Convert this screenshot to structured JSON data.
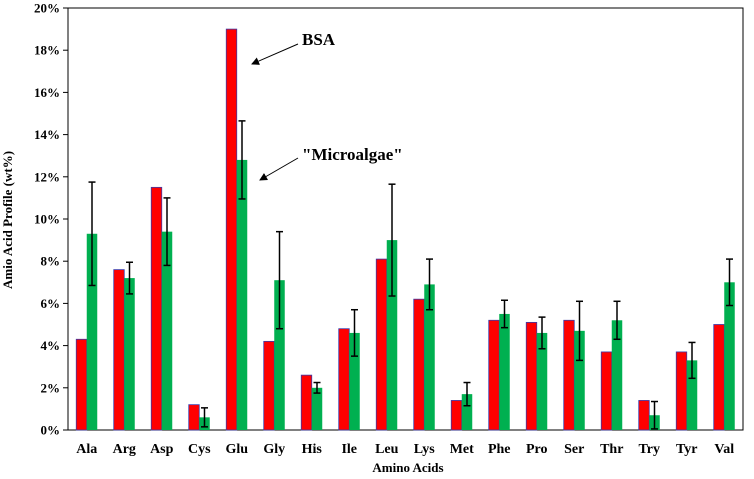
{
  "chart_data": {
    "type": "bar",
    "xlabel": "Amino Acids",
    "ylabel": "Amio Acid Profile (wt%)",
    "ylim": [
      0,
      20
    ],
    "yticks": [
      0,
      2,
      4,
      6,
      8,
      10,
      12,
      14,
      16,
      18,
      20
    ],
    "ytick_suffix": "%",
    "grid": false,
    "legend": "none",
    "categories": [
      "Ala",
      "Arg",
      "Asp",
      "Cys",
      "Glu",
      "Gly",
      "His",
      "Ile",
      "Leu",
      "Lys",
      "Met",
      "Phe",
      "Pro",
      "Ser",
      "Thr",
      "Try",
      "Tyr",
      "Val"
    ],
    "series": [
      {
        "name": "BSA",
        "color": "#ff0000",
        "edge_color": "#3a3aaa",
        "values": [
          4.3,
          7.6,
          11.5,
          1.2,
          19.0,
          4.2,
          2.6,
          4.8,
          8.1,
          6.2,
          1.4,
          5.2,
          5.1,
          5.2,
          3.7,
          1.4,
          3.7,
          5.0
        ]
      },
      {
        "name": "\"Microalgae\"",
        "color": "#00b050",
        "values": [
          9.3,
          7.2,
          9.4,
          0.6,
          12.8,
          7.1,
          2.0,
          4.6,
          9.0,
          6.9,
          1.7,
          5.5,
          4.6,
          4.7,
          5.2,
          0.7,
          3.3,
          7.0
        ],
        "error": [
          2.45,
          0.75,
          1.6,
          0.45,
          1.85,
          2.3,
          0.25,
          1.1,
          2.65,
          1.2,
          0.55,
          0.65,
          0.75,
          1.4,
          0.9,
          0.65,
          0.85,
          1.1
        ]
      }
    ],
    "annotations": [
      {
        "text": "BSA"
      },
      {
        "text": "\"Microalgae\""
      }
    ]
  }
}
